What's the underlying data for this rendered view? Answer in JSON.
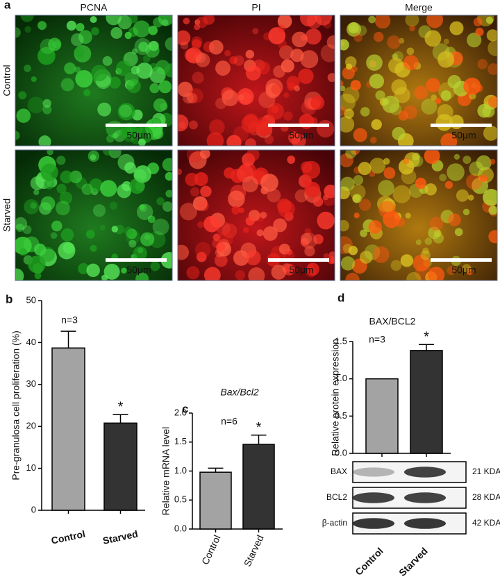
{
  "panel_a": {
    "label": "a",
    "columns": [
      "PCNA",
      "PI",
      "Merge"
    ],
    "rows": [
      "Control",
      "Starved"
    ],
    "scale_bar": "50μm"
  },
  "chart_data": [
    {
      "type": "bar",
      "label": "b",
      "ylabel": "Pre-granulosa cell proliferation (%)",
      "annotation": "n=3",
      "categories": [
        "Control",
        "Starved"
      ],
      "values": [
        38.7,
        20.8
      ],
      "errors": [
        4.0,
        2.0
      ],
      "significance": [
        null,
        "*"
      ],
      "colors": [
        "#a3a3a3",
        "#333333"
      ],
      "ylim": [
        0,
        50
      ],
      "yticks": [
        0,
        10,
        20,
        30,
        40,
        50
      ]
    },
    {
      "type": "bar",
      "label": "c",
      "title": "Bax/Bcl2",
      "ylabel": "Relative mRNA level",
      "annotation": "n=6",
      "categories": [
        "Control",
        "Starved"
      ],
      "values": [
        0.98,
        1.46
      ],
      "errors": [
        0.07,
        0.16
      ],
      "significance": [
        null,
        "*"
      ],
      "colors": [
        "#a3a3a3",
        "#333333"
      ],
      "ylim": [
        0,
        2
      ],
      "yticks": [
        {
          "value": 0,
          "label": "0.0"
        },
        0.5,
        {
          "value": 1,
          "label": "1.0"
        },
        1.5,
        {
          "value": 2,
          "label": "2.0"
        }
      ]
    },
    {
      "type": "bar",
      "label": "d",
      "title": "BAX/BCL2",
      "ylabel": "Relative protein expression",
      "annotation": "n=3",
      "categories": [
        "Control",
        "Starved"
      ],
      "values": [
        1.0,
        1.38
      ],
      "errors": [
        0,
        0.08
      ],
      "significance": [
        null,
        "*"
      ],
      "colors": [
        "#a3a3a3",
        "#333333"
      ],
      "ylim": [
        0,
        1.5
      ],
      "yticks": [
        {
          "value": 0,
          "label": "0.0"
        },
        0.5,
        {
          "value": 1,
          "label": "1.0"
        },
        1.5
      ]
    }
  ],
  "blot": {
    "bands": [
      {
        "name": "BAX",
        "size": "21 KDA"
      },
      {
        "name": "BCL2",
        "size": "28 KDA"
      },
      {
        "name": "β-actin",
        "size": "42 KDA"
      }
    ]
  }
}
